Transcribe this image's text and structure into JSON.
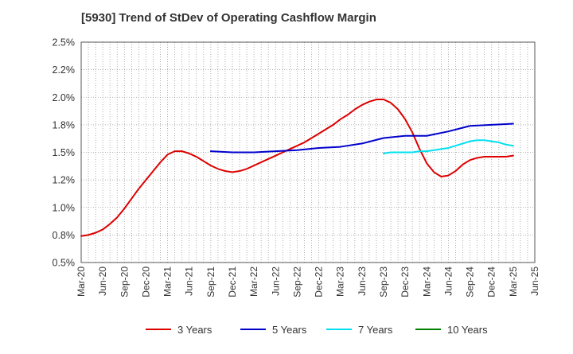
{
  "chart_data": {
    "type": "line",
    "title": "[5930]  Trend of StDev of Operating Cashflow Margin",
    "xlabel": "",
    "ylabel": "",
    "x_ticks": [
      "Mar-20",
      "Jun-20",
      "Sep-20",
      "Dec-20",
      "Mar-21",
      "Jun-21",
      "Sep-21",
      "Dec-21",
      "Mar-22",
      "Jun-22",
      "Sep-22",
      "Dec-22",
      "Mar-23",
      "Jun-23",
      "Sep-23",
      "Dec-23",
      "Mar-24",
      "Jun-24",
      "Sep-24",
      "Dec-24",
      "Mar-25",
      "Jun-25"
    ],
    "y_ticks": [
      "0.5%",
      "0.8%",
      "1.0%",
      "1.2%",
      "1.5%",
      "1.8%",
      "2.0%",
      "2.2%",
      "2.5%"
    ],
    "ylim": [
      0.5,
      2.5
    ],
    "grid": true,
    "legend_position": "bottom",
    "series": [
      {
        "name": "3 Years",
        "color": "#dd0000",
        "points": [
          [
            "Mar-20",
            0.74
          ],
          [
            "Apr-20",
            0.75
          ],
          [
            "May-20",
            0.77
          ],
          [
            "Jun-20",
            0.8
          ],
          [
            "Jul-20",
            0.85
          ],
          [
            "Aug-20",
            0.91
          ],
          [
            "Sep-20",
            0.99
          ],
          [
            "Oct-20",
            1.08
          ],
          [
            "Nov-20",
            1.17
          ],
          [
            "Dec-20",
            1.25
          ],
          [
            "Jan-21",
            1.33
          ],
          [
            "Feb-21",
            1.41
          ],
          [
            "Mar-21",
            1.48
          ],
          [
            "Apr-21",
            1.51
          ],
          [
            "May-21",
            1.51
          ],
          [
            "Jun-21",
            1.49
          ],
          [
            "Jul-21",
            1.46
          ],
          [
            "Aug-21",
            1.42
          ],
          [
            "Sep-21",
            1.38
          ],
          [
            "Oct-21",
            1.35
          ],
          [
            "Nov-21",
            1.33
          ],
          [
            "Dec-21",
            1.32
          ],
          [
            "Jan-22",
            1.33
          ],
          [
            "Feb-22",
            1.35
          ],
          [
            "Mar-22",
            1.38
          ],
          [
            "Apr-22",
            1.41
          ],
          [
            "May-22",
            1.44
          ],
          [
            "Jun-22",
            1.47
          ],
          [
            "Jul-22",
            1.5
          ],
          [
            "Aug-22",
            1.53
          ],
          [
            "Sep-22",
            1.56
          ],
          [
            "Oct-22",
            1.59
          ],
          [
            "Nov-22",
            1.63
          ],
          [
            "Dec-22",
            1.67
          ],
          [
            "Jan-23",
            1.71
          ],
          [
            "Feb-23",
            1.75
          ],
          [
            "Mar-23",
            1.8
          ],
          [
            "Apr-23",
            1.84
          ],
          [
            "May-23",
            1.89
          ],
          [
            "Jun-23",
            1.93
          ],
          [
            "Jul-23",
            1.96
          ],
          [
            "Aug-23",
            1.98
          ],
          [
            "Sep-23",
            1.98
          ],
          [
            "Oct-23",
            1.95
          ],
          [
            "Nov-23",
            1.89
          ],
          [
            "Dec-23",
            1.8
          ],
          [
            "Jan-24",
            1.68
          ],
          [
            "Feb-24",
            1.53
          ],
          [
            "Mar-24",
            1.4
          ],
          [
            "Apr-24",
            1.32
          ],
          [
            "May-24",
            1.28
          ],
          [
            "Jun-24",
            1.29
          ],
          [
            "Jul-24",
            1.33
          ],
          [
            "Aug-24",
            1.39
          ],
          [
            "Sep-24",
            1.43
          ],
          [
            "Oct-24",
            1.45
          ],
          [
            "Nov-24",
            1.46
          ],
          [
            "Dec-24",
            1.46
          ],
          [
            "Jan-25",
            1.46
          ],
          [
            "Feb-25",
            1.46
          ],
          [
            "Mar-25",
            1.47
          ]
        ]
      },
      {
        "name": "5 Years",
        "color": "#0000cc",
        "points": [
          [
            "Sep-21",
            1.51
          ],
          [
            "Dec-21",
            1.5
          ],
          [
            "Mar-22",
            1.5
          ],
          [
            "Jun-22",
            1.51
          ],
          [
            "Sep-22",
            1.52
          ],
          [
            "Dec-22",
            1.54
          ],
          [
            "Mar-23",
            1.55
          ],
          [
            "Jun-23",
            1.58
          ],
          [
            "Sep-23",
            1.63
          ],
          [
            "Dec-23",
            1.65
          ],
          [
            "Mar-24",
            1.65
          ],
          [
            "Jun-24",
            1.69
          ],
          [
            "Sep-24",
            1.74
          ],
          [
            "Dec-24",
            1.75
          ],
          [
            "Mar-25",
            1.76
          ]
        ]
      },
      {
        "name": "7 Years",
        "color": "#00e0f0",
        "points": [
          [
            "Sep-23",
            1.49
          ],
          [
            "Oct-23",
            1.5
          ],
          [
            "Nov-23",
            1.5
          ],
          [
            "Dec-23",
            1.5
          ],
          [
            "Jan-24",
            1.5
          ],
          [
            "Feb-24",
            1.51
          ],
          [
            "Mar-24",
            1.51
          ],
          [
            "Apr-24",
            1.52
          ],
          [
            "May-24",
            1.53
          ],
          [
            "Jun-24",
            1.54
          ],
          [
            "Jul-24",
            1.56
          ],
          [
            "Aug-24",
            1.58
          ],
          [
            "Sep-24",
            1.6
          ],
          [
            "Oct-24",
            1.61
          ],
          [
            "Nov-24",
            1.61
          ],
          [
            "Dec-24",
            1.6
          ],
          [
            "Jan-25",
            1.59
          ],
          [
            "Feb-25",
            1.57
          ],
          [
            "Mar-25",
            1.56
          ]
        ]
      },
      {
        "name": "10 Years",
        "color": "#008000",
        "points": []
      }
    ]
  }
}
